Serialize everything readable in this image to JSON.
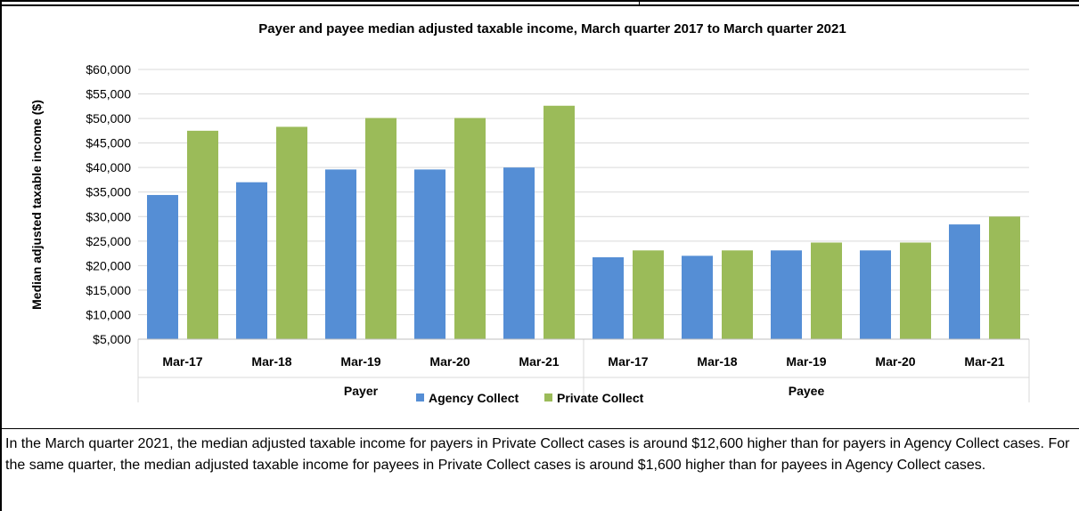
{
  "chart_data": {
    "type": "bar",
    "title": "Payer and payee median adjusted taxable income, March quarter 2017 to March quarter 2021",
    "ylabel": "Median adjusted taxable income ($)",
    "xlabel": "",
    "ylim": [
      5000,
      60000
    ],
    "yticks": [
      "$5,000",
      "$10,000",
      "$15,000",
      "$20,000",
      "$25,000",
      "$30,000",
      "$35,000",
      "$40,000",
      "$45,000",
      "$50,000",
      "$55,000",
      "$60,000"
    ],
    "yticks_values": [
      5000,
      10000,
      15000,
      20000,
      25000,
      30000,
      35000,
      40000,
      45000,
      50000,
      55000,
      60000
    ],
    "grid": true,
    "legend_position": "bottom-center",
    "groups": [
      {
        "name": "Payer",
        "categories": [
          "Mar-17",
          "Mar-18",
          "Mar-19",
          "Mar-20",
          "Mar-21"
        ]
      },
      {
        "name": "Payee",
        "categories": [
          "Mar-17",
          "Mar-18",
          "Mar-19",
          "Mar-20",
          "Mar-21"
        ]
      }
    ],
    "series": [
      {
        "name": "Agency Collect",
        "color": "#558ED5",
        "values": [
          34400,
          37000,
          39600,
          39600,
          40000,
          21700,
          22000,
          23100,
          23100,
          28400
        ]
      },
      {
        "name": "Private Collect",
        "color": "#9BBB59",
        "values": [
          47500,
          48300,
          50100,
          50100,
          52600,
          23100,
          23100,
          24700,
          24700,
          30000
        ]
      }
    ]
  },
  "note": "In the March quarter 2021, the median adjusted taxable income for payers in Private Collect cases is around $12,600 higher than for payers in Agency Collect cases. For the same quarter, the median adjusted taxable income for payees in Private Collect cases is around $1,600 higher than for payees in Agency Collect cases."
}
